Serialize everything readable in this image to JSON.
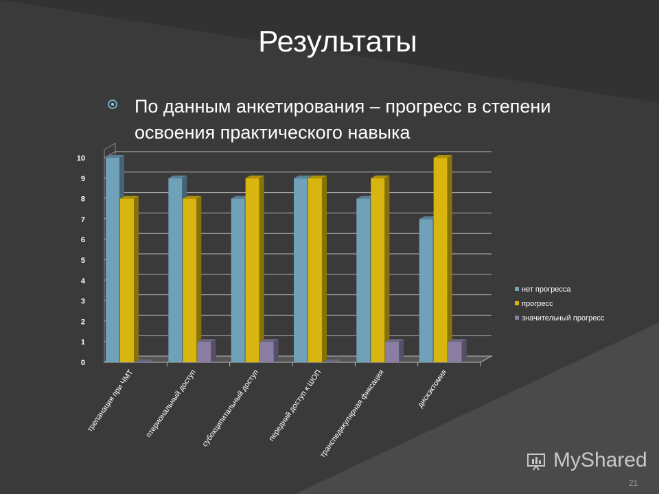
{
  "slide": {
    "title": "Результаты",
    "bullet": "По данным анкетирования – прогресс в степени освоения практического навыка",
    "page_number": "21",
    "watermark": "MyShared"
  },
  "colors": {
    "background": "#3a3a3a",
    "series": [
      "#6fa1b8",
      "#d9b60f",
      "#8a7fa3"
    ]
  },
  "chart_data": {
    "type": "bar",
    "title": "",
    "xlabel": "",
    "ylabel": "",
    "ylim": [
      0,
      10
    ],
    "yticks": [
      "0",
      "1",
      "2",
      "3",
      "4",
      "5",
      "6",
      "7",
      "8",
      "9",
      "10"
    ],
    "categories": [
      "трепанация при ЧМТ",
      "птериональный доступ",
      "субокципитальный доступ",
      "передний доступ к ШОП",
      "транспедикулярная фиксация",
      "дискэктомия"
    ],
    "series": [
      {
        "name": "нет прогресса",
        "values": [
          10,
          9,
          8,
          9,
          8,
          7
        ]
      },
      {
        "name": "прогресс",
        "values": [
          8,
          8,
          9,
          9,
          9,
          10
        ]
      },
      {
        "name": "значительный прогресс",
        "values": [
          0,
          1,
          1,
          0,
          1,
          1
        ]
      }
    ],
    "legend": "right",
    "grid": true,
    "style": "3d-column"
  }
}
